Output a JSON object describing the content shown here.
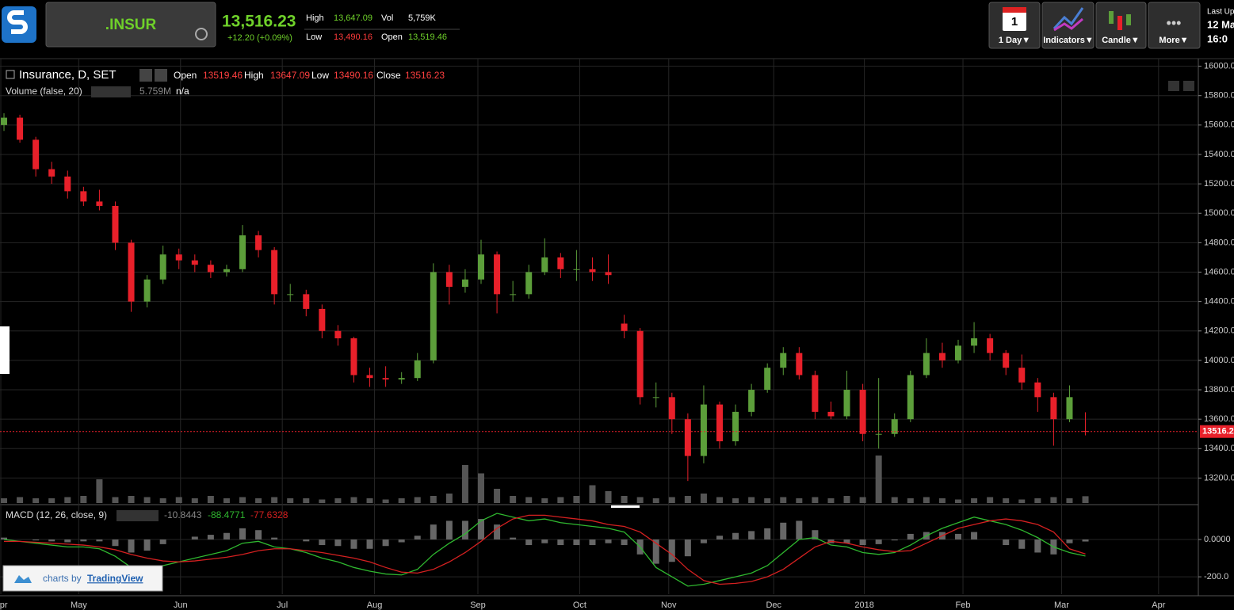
{
  "header": {
    "symbol": ".INSUR",
    "price": "13,516.23",
    "change": "+12.20 (+0.09%)",
    "high_label": "High",
    "high": "13,647.09",
    "vol_label": "Vol",
    "vol": "5,759K",
    "low_label": "Low",
    "low": "13,490.16",
    "open_label": "Open",
    "open": "13,519.46"
  },
  "toolbar": {
    "interval_icon": "1",
    "interval": "1 Day▼",
    "indicators": "Indicators▼",
    "style": "Candle▼",
    "more": "More▼",
    "last_update_label": "Last Up",
    "last_update_date": "12 Ma",
    "last_update_time": "16:0"
  },
  "chart_data": {
    "type": "candlestick",
    "title": "Insurance, D, SET",
    "legend_labels": [
      "Open",
      "High",
      "Low",
      "Close"
    ],
    "up_color": "#5c9e3a",
    "down_color": "#e8202a",
    "candles": [
      [
        15600,
        15680,
        15560,
        15650
      ],
      [
        15650,
        15670,
        15480,
        15500
      ],
      [
        15500,
        15520,
        15250,
        15300
      ],
      [
        15300,
        15350,
        15200,
        15250
      ],
      [
        15250,
        15290,
        15100,
        15150
      ],
      [
        15150,
        15180,
        15050,
        15080
      ],
      [
        15080,
        15160,
        15020,
        15050
      ],
      [
        15050,
        15080,
        14750,
        14800
      ],
      [
        14800,
        14820,
        14330,
        14400
      ],
      [
        14400,
        14580,
        14360,
        14550
      ],
      [
        14550,
        14780,
        14520,
        14720
      ],
      [
        14720,
        14760,
        14620,
        14680
      ],
      [
        14680,
        14720,
        14600,
        14650
      ],
      [
        14650,
        14680,
        14560,
        14600
      ],
      [
        14600,
        14650,
        14570,
        14620
      ],
      [
        14620,
        14920,
        14600,
        14850
      ],
      [
        14850,
        14880,
        14700,
        14750
      ],
      [
        14750,
        14770,
        14380,
        14450
      ],
      [
        14450,
        14520,
        14400,
        14450
      ],
      [
        14450,
        14480,
        14300,
        14350
      ],
      [
        14350,
        14380,
        14150,
        14200
      ],
      [
        14200,
        14240,
        14100,
        14150
      ],
      [
        14150,
        14160,
        13850,
        13900
      ],
      [
        13900,
        13950,
        13820,
        13880
      ],
      [
        13880,
        13960,
        13820,
        13870
      ],
      [
        13870,
        13920,
        13840,
        13880
      ],
      [
        13880,
        14050,
        13860,
        14000
      ],
      [
        14000,
        14660,
        13980,
        14600
      ],
      [
        14600,
        14650,
        14380,
        14500
      ],
      [
        14500,
        14620,
        14460,
        14550
      ],
      [
        14550,
        14820,
        14520,
        14720
      ],
      [
        14720,
        14740,
        14320,
        14450
      ],
      [
        14450,
        14540,
        14400,
        14450
      ],
      [
        14450,
        14650,
        14420,
        14600
      ],
      [
        14600,
        14830,
        14580,
        14700
      ],
      [
        14700,
        14730,
        14560,
        14620
      ],
      [
        14620,
        14750,
        14540,
        14620
      ],
      [
        14620,
        14700,
        14540,
        14600
      ],
      [
        14600,
        14720,
        14520,
        14580
      ],
      [
        14250,
        14310,
        14150,
        14200
      ],
      [
        14200,
        14220,
        13700,
        13750
      ],
      [
        13750,
        13850,
        13680,
        13750
      ],
      [
        13750,
        13780,
        13500,
        13600
      ],
      [
        13600,
        13640,
        13180,
        13350
      ],
      [
        13350,
        13830,
        13300,
        13700
      ],
      [
        13700,
        13720,
        13400,
        13450
      ],
      [
        13450,
        13700,
        13420,
        13650
      ],
      [
        13650,
        13840,
        13620,
        13800
      ],
      [
        13800,
        13980,
        13780,
        13950
      ],
      [
        13950,
        14090,
        13900,
        14050
      ],
      [
        14050,
        14090,
        13870,
        13900
      ],
      [
        13900,
        13930,
        13600,
        13650
      ],
      [
        13650,
        13720,
        13600,
        13620
      ],
      [
        13620,
        13930,
        13600,
        13800
      ],
      [
        13800,
        13840,
        13450,
        13500
      ],
      [
        13500,
        13880,
        13400,
        13500
      ],
      [
        13500,
        13640,
        13480,
        13600
      ],
      [
        13600,
        13930,
        13580,
        13900
      ],
      [
        13900,
        14150,
        13880,
        14050
      ],
      [
        14050,
        14120,
        13950,
        14000
      ],
      [
        14000,
        14140,
        13980,
        14100
      ],
      [
        14100,
        14260,
        14050,
        14150
      ],
      [
        14150,
        14180,
        14000,
        14050
      ],
      [
        14050,
        14070,
        13900,
        13950
      ],
      [
        13950,
        14040,
        13800,
        13850
      ],
      [
        13850,
        13880,
        13650,
        13750
      ],
      [
        13750,
        13780,
        13420,
        13600
      ],
      [
        13600,
        13830,
        13580,
        13750
      ],
      [
        13519.46,
        13647.09,
        13490.16,
        13516.23
      ]
    ],
    "xlim": [
      -0.25,
      75.1
    ],
    "xticks": [
      {
        "value": -0.2,
        "label": "Apr"
      },
      {
        "value": 4.7,
        "label": "May"
      },
      {
        "value": 11.1,
        "label": "Jun"
      },
      {
        "value": 17.5,
        "label": "Jul"
      },
      {
        "value": 23.3,
        "label": "Aug"
      },
      {
        "value": 29.8,
        "label": "Sep"
      },
      {
        "value": 36.2,
        "label": "Oct"
      },
      {
        "value": 41.8,
        "label": "Nov"
      },
      {
        "value": 48.4,
        "label": "Dec"
      },
      {
        "value": 54.1,
        "label": "2018"
      },
      {
        "value": 60.3,
        "label": "Feb"
      },
      {
        "value": 66.5,
        "label": "Mar"
      },
      {
        "value": 72.6,
        "label": "Apr"
      }
    ],
    "ylim": [
      13030,
      16030
    ],
    "yticks": [
      {
        "value": 13200,
        "label": "13200.0"
      },
      {
        "value": 13400,
        "label": "13400.0"
      },
      {
        "value": 13600,
        "label": "13600.0"
      },
      {
        "value": 13800,
        "label": "13800.0"
      },
      {
        "value": 14000,
        "label": "14000.0"
      },
      {
        "value": 14200,
        "label": "14200.0"
      },
      {
        "value": 14400,
        "label": "14400.0"
      },
      {
        "value": 14600,
        "label": "14600.0"
      },
      {
        "value": 14800,
        "label": "14800.0"
      },
      {
        "value": 15000,
        "label": "15000.0"
      },
      {
        "value": 15200,
        "label": "15200.0"
      },
      {
        "value": 15400,
        "label": "15400.0"
      },
      {
        "value": 15600,
        "label": "15600.0"
      },
      {
        "value": 15800,
        "label": "15800.0"
      },
      {
        "value": 16000,
        "label": "16000.0"
      }
    ],
    "grid": true,
    "volume": {
      "name": "Volume (false, 20)",
      "last_label": "5.759M",
      "status": "n/a",
      "color": "#555",
      "ylim": [
        0,
        60
      ],
      "values": [
        4,
        5,
        4,
        4,
        5,
        6,
        20,
        5,
        6,
        5,
        4,
        5,
        4,
        6,
        4,
        5,
        4,
        5,
        4,
        4,
        3,
        4,
        5,
        4,
        3,
        4,
        5,
        6,
        8,
        32,
        25,
        12,
        6,
        5,
        4,
        5,
        6,
        15,
        10,
        6,
        5,
        4,
        5,
        6,
        8,
        5,
        4,
        5,
        4,
        5,
        4,
        5,
        4,
        6,
        5,
        40,
        5,
        4,
        5,
        4,
        3,
        4,
        5,
        4,
        3,
        4,
        5,
        4,
        5.759
      ]
    },
    "macd": {
      "name": "MACD (12, 26, close, 9)",
      "macd_color": "#2fb82f",
      "signal_color": "#d42020",
      "hist_color": "#666",
      "ylim": [
        -293,
        174
      ],
      "yticks": [
        {
          "value": -200,
          "label": "-200.0"
        },
        {
          "value": 0,
          "label": "0.0000"
        }
      ],
      "macd": [
        0,
        -10,
        -20,
        -30,
        -40,
        -40,
        -50,
        -90,
        -150,
        -160,
        -140,
        -120,
        -100,
        -80,
        -60,
        -20,
        -10,
        -40,
        -50,
        -70,
        -100,
        -120,
        -150,
        -170,
        -185,
        -190,
        -160,
        -80,
        -20,
        30,
        100,
        140,
        120,
        100,
        110,
        90,
        80,
        70,
        60,
        40,
        -40,
        -150,
        -200,
        -250,
        -240,
        -220,
        -200,
        -180,
        -140,
        -70,
        0,
        10,
        -30,
        -40,
        -70,
        -80,
        -70,
        -30,
        20,
        60,
        90,
        120,
        100,
        80,
        50,
        10,
        -40,
        -70,
        -88.4771
      ],
      "signal": [
        -10,
        -10,
        -15,
        -20,
        -25,
        -30,
        -40,
        -55,
        -80,
        -100,
        -115,
        -120,
        -115,
        -105,
        -95,
        -80,
        -60,
        -50,
        -50,
        -60,
        -70,
        -85,
        -100,
        -120,
        -150,
        -175,
        -180,
        -160,
        -120,
        -70,
        -10,
        60,
        110,
        130,
        130,
        120,
        110,
        100,
        80,
        70,
        40,
        -20,
        -80,
        -160,
        -220,
        -240,
        -235,
        -225,
        -200,
        -160,
        -100,
        -40,
        -10,
        -20,
        -40,
        -55,
        -65,
        -60,
        -20,
        20,
        60,
        80,
        100,
        110,
        100,
        80,
        40,
        -50,
        -77.6328
      ],
      "histogram": [
        10,
        0,
        -5,
        -10,
        -15,
        -10,
        -10,
        -35,
        -70,
        -60,
        -25,
        0,
        15,
        25,
        35,
        60,
        50,
        10,
        0,
        -10,
        -30,
        -35,
        -50,
        -50,
        -35,
        -15,
        20,
        80,
        100,
        100,
        110,
        80,
        10,
        -30,
        -20,
        -30,
        -30,
        -30,
        -20,
        -30,
        -80,
        -130,
        -120,
        -90,
        -20,
        20,
        35,
        45,
        60,
        90,
        100,
        50,
        -20,
        -20,
        -30,
        -25,
        -5,
        30,
        40,
        40,
        30,
        40,
        0,
        -30,
        -50,
        -70,
        -80,
        -20,
        -10.8443
      ]
    },
    "credit": {
      "prefix": "charts by",
      "brand": "TradingView"
    }
  }
}
